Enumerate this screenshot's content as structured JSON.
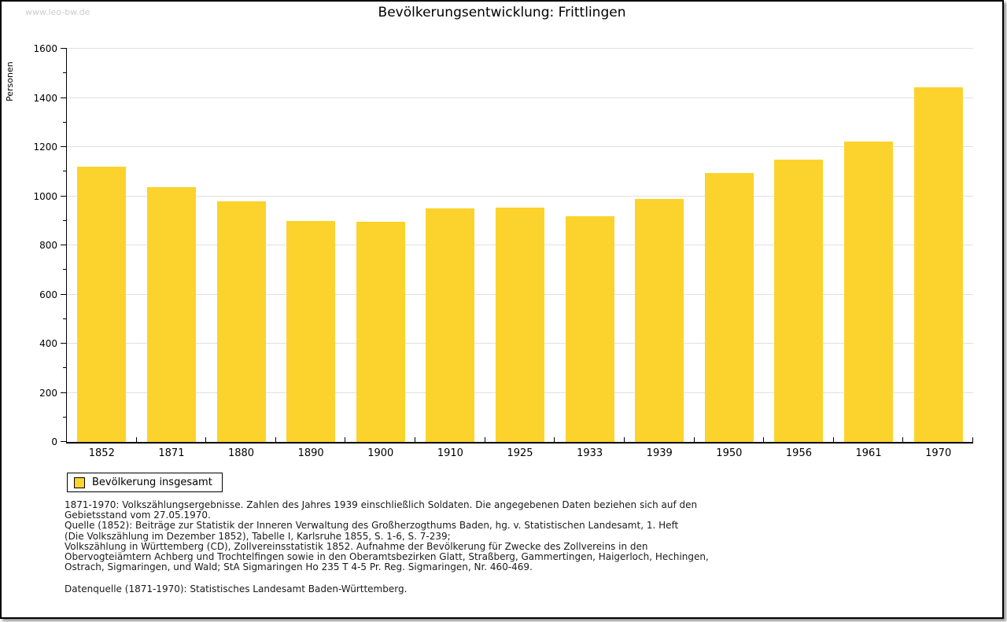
{
  "watermark": "www.leo-bw.de",
  "title": "Bevölkerungsentwicklung: Frittlingen",
  "chart_data": {
    "type": "bar",
    "title": "Bevölkerungsentwicklung: Frittlingen",
    "xlabel": "",
    "ylabel": "Personen",
    "categories": [
      "1852",
      "1871",
      "1880",
      "1890",
      "1900",
      "1910",
      "1925",
      "1933",
      "1939",
      "1950",
      "1956",
      "1961",
      "1970"
    ],
    "values": [
      1120,
      1038,
      978,
      898,
      895,
      951,
      953,
      920,
      990,
      1095,
      1150,
      1221,
      1442
    ],
    "series_name": "Bevölkerung insgesamt",
    "ylim": [
      0,
      1600
    ],
    "ytick_major_interval": 200,
    "ytick_minor_interval": 100,
    "grid": true,
    "bar_color": "#FCD32D",
    "gridline_color": "#e0e0e0",
    "legend_position": "bottom-left"
  },
  "legend": {
    "label": "Bevölkerung insgesamt",
    "swatch_color": "#FCD32D"
  },
  "footnotes": [
    "1871-1970: Volkszählungsergebnisse. Zahlen des Jahres 1939 einschließlich Soldaten. Die angegebenen Daten beziehen sich auf den",
    "Gebietsstand vom 27.05.1970.",
    "Quelle (1852): Beiträge zur Statistik der Inneren Verwaltung des Großherzogthums Baden, hg. v. Statistischen Landesamt, 1. Heft",
    "(Die Volkszählung im Dezember 1852), Tabelle I, Karlsruhe 1855, S. 1-6, S. 7-239;",
    "Volkszählung in Württemberg (CD), Zollvereinsstatistik 1852. Aufnahme der Bevölkerung für Zwecke des Zollvereins in den",
    "Obervogteiämtern Achberg und Trochtelfingen sowie in den Oberamtsbezirken Glatt, Straßberg, Gammertingen, Haigerloch, Hechingen,",
    "Ostrach, Sigmaringen, und Wald; StA Sigmaringen Ho 235 T 4-5 Pr. Reg. Sigmaringen, Nr. 460-469."
  ],
  "datasource": "Datenquelle (1871-1970): Statistisches Landesamt Baden-Württemberg."
}
